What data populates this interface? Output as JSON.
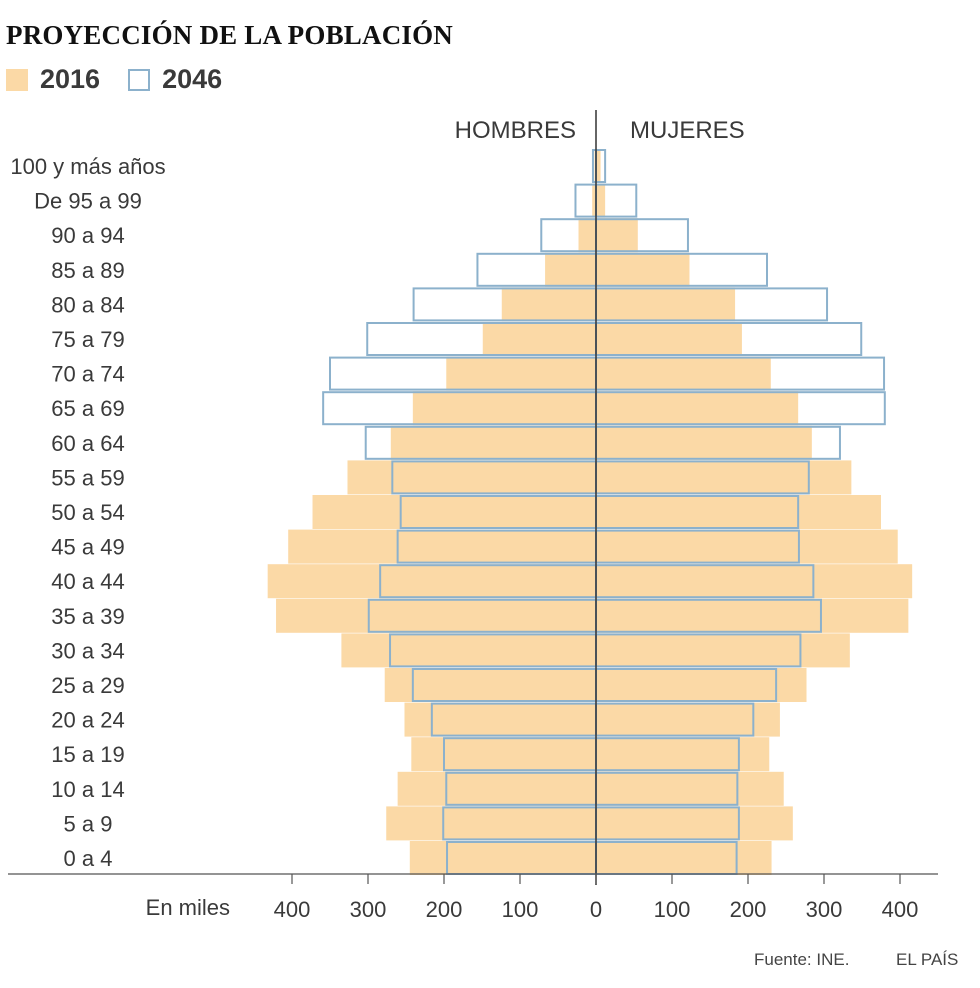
{
  "title": "PROYECCIÓN DE LA POBLACIÓN",
  "legend": [
    {
      "label": "2016",
      "fill": "#fbd9a6",
      "stroke": "none"
    },
    {
      "label": "2046",
      "fill": "#ffffff",
      "stroke": "#8cb1cc"
    }
  ],
  "footer": {
    "source": "Fuente: INE.",
    "brand": "EL PAÍS"
  },
  "chart_data": {
    "type": "bar",
    "orientation": "horizontal population pyramid",
    "side_labels": {
      "left": "HOMBRES",
      "right": "MUJERES"
    },
    "xlabel": "En miles",
    "xlim": [
      -400,
      400
    ],
    "x_ticks": [
      "400",
      "300",
      "200",
      "100",
      "0",
      "100",
      "200",
      "300",
      "400"
    ],
    "x_tick_values": [
      -400,
      -300,
      -200,
      -100,
      0,
      100,
      200,
      300,
      400
    ],
    "categories": [
      "100 y más años",
      "De 95 a 99",
      "90 a 94",
      "85 a 89",
      "80 a 84",
      "75 a 79",
      "70 a 74",
      "65 a 69",
      "60 a 64",
      "55 a 59",
      "50 a 54",
      "45 a 49",
      "40 a 44",
      "35 a 39",
      "30 a 34",
      "25 a 29",
      "20 a 24",
      "15 a 19",
      "10 a 14",
      "5 a 9",
      "0 a 4"
    ],
    "colors": {
      "s2016": "#fbd9a6",
      "s2046_stroke": "#8cb1cc",
      "axis": "#333333"
    },
    "series": [
      {
        "name": "2016",
        "side": "hombres",
        "values": [
          2,
          5,
          23,
          67,
          124,
          149,
          197,
          241,
          270,
          327,
          373,
          405,
          432,
          421,
          335,
          278,
          252,
          243,
          261,
          276,
          245
        ]
      },
      {
        "name": "2016",
        "side": "mujeres",
        "values": [
          6,
          12,
          55,
          123,
          183,
          192,
          230,
          266,
          284,
          336,
          375,
          397,
          416,
          411,
          334,
          277,
          242,
          228,
          247,
          259,
          231
        ]
      },
      {
        "name": "2046",
        "side": "hombres",
        "values": [
          4,
          27,
          72,
          156,
          240,
          301,
          350,
          359,
          303,
          268,
          257,
          261,
          284,
          299,
          271,
          241,
          216,
          200,
          197,
          201,
          196
        ]
      },
      {
        "name": "2046",
        "side": "mujeres",
        "values": [
          12,
          53,
          121,
          225,
          304,
          349,
          379,
          380,
          321,
          280,
          266,
          267,
          286,
          296,
          269,
          237,
          207,
          188,
          186,
          188,
          185
        ]
      }
    ]
  }
}
